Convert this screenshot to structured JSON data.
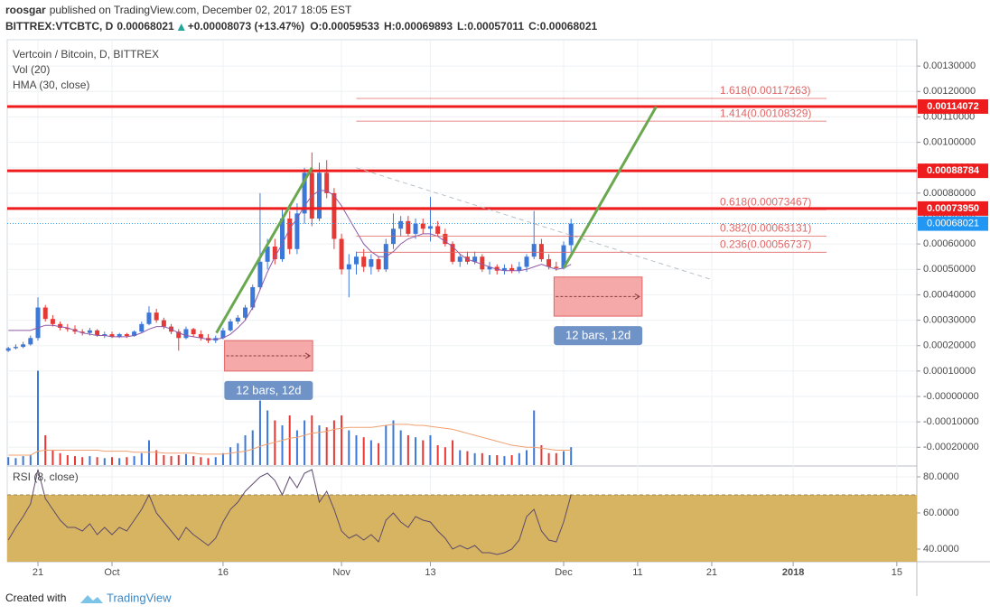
{
  "header": {
    "author": "roosgar",
    "published": "published on TradingView.com, December 02, 2017 18:05 EST",
    "symbol": "BITTREX:VTCBTC, D",
    "last": "0.00068021",
    "change": "+0.00008073 (+13.47%)",
    "quote": [
      {
        "label": "O:",
        "value": "0.00059533"
      },
      {
        "label": "H:",
        "value": "0.00069893"
      },
      {
        "label": "L:",
        "value": "0.00057011"
      },
      {
        "label": "C:",
        "value": "0.00068021"
      }
    ]
  },
  "chart_data": {
    "type": "candlestick",
    "legend": [
      "Vertcoin / Bitcoin, D, BITTREX",
      "Vol (20)",
      "HMA (30, close)"
    ],
    "up_color": "#3c78d8",
    "down_color": "#e53935",
    "hma_color": "#8e5aa8",
    "volume_ma_color": "#f0a070",
    "xlim": [
      -0.15,
      122.7
    ],
    "xticks": [
      {
        "value": 4,
        "label": "21"
      },
      {
        "value": 14,
        "label": "Oct"
      },
      {
        "value": 29,
        "label": "16"
      },
      {
        "value": 45,
        "label": "Nov"
      },
      {
        "value": 57,
        "label": "13"
      },
      {
        "value": 75,
        "label": "Dec"
      },
      {
        "value": 85,
        "label": "11"
      },
      {
        "value": 95,
        "label": "21"
      },
      {
        "value": 106,
        "label": "2018"
      },
      {
        "value": 120,
        "label": "15"
      }
    ],
    "ylim": [
      -0.00027,
      0.0014
    ],
    "yticks": [
      {
        "value": 0.0013,
        "label": "0.00130000"
      },
      {
        "value": 0.0012,
        "label": "0.00120000"
      },
      {
        "value": 0.0011,
        "label": "0.00110000"
      },
      {
        "value": 0.001,
        "label": "0.00100000"
      },
      {
        "value": 0.0009,
        "label": "0.00090000"
      },
      {
        "value": 0.0008,
        "label": "0.00080000"
      },
      {
        "value": 0.0007,
        "label": "0.00070000"
      },
      {
        "value": 0.0006,
        "label": "0.00060000"
      },
      {
        "value": 0.0005,
        "label": "0.00050000"
      },
      {
        "value": 0.0004,
        "label": "0.00040000"
      },
      {
        "value": 0.0003,
        "label": "0.00030000"
      },
      {
        "value": 0.0002,
        "label": "0.00020000"
      },
      {
        "value": 0.0001,
        "label": "0.00010000"
      },
      {
        "value": 0,
        "label": "-0.00000000"
      },
      {
        "value": -0.0001,
        "label": "-0.00010000"
      },
      {
        "value": -0.0002,
        "label": "-0.00020000"
      }
    ],
    "grid": true,
    "open": [
      0.00018,
      0.00019,
      0.000195,
      0.000205,
      0.00023,
      0.00035,
      0.000305,
      0.000285,
      0.00027,
      0.000265,
      0.000255,
      0.00025,
      0.00026,
      0.00024,
      0.000245,
      0.000235,
      0.000245,
      0.000238,
      0.000255,
      0.000285,
      0.00033,
      0.0003,
      0.000275,
      0.000255,
      0.00023,
      0.000265,
      0.000245,
      0.00023,
      0.00022,
      0.00023,
      0.00026,
      0.000295,
      0.00031,
      0.00035,
      0.00043,
      0.00053,
      0.00059,
      0.00054,
      0.0007,
      0.00058,
      0.00072,
      0.00088,
      0.0007,
      0.00088,
      0.0008,
      0.00062,
      0.0005,
      0.00052,
      0.00055,
      0.00051,
      0.00054,
      0.0005,
      0.0006,
      0.00066,
      0.00069,
      0.00064,
      0.00068,
      0.00066,
      0.00067,
      0.00064,
      0.0006,
      0.00053,
      0.00055,
      0.00053,
      0.00055,
      0.0005,
      0.00051,
      0.000495,
      0.000505,
      0.000495,
      0.00051,
      0.00055,
      0.0006,
      0.00054,
      0.00051,
      0.000505,
      0.00059533
    ],
    "high": [
      0.000195,
      0.000205,
      0.000215,
      0.00024,
      0.00039,
      0.00036,
      0.00032,
      0.000295,
      0.000285,
      0.00028,
      0.000265,
      0.00027,
      0.000265,
      0.000255,
      0.000255,
      0.00025,
      0.00025,
      0.00026,
      0.000295,
      0.000355,
      0.000345,
      0.00031,
      0.000285,
      0.000265,
      0.000275,
      0.00027,
      0.00026,
      0.000245,
      0.00024,
      0.00027,
      0.000305,
      0.00032,
      0.00036,
      0.00044,
      0.0008,
      0.00062,
      0.00062,
      0.00074,
      0.00073,
      0.00076,
      0.0009,
      0.00096,
      0.00092,
      0.00093,
      0.00082,
      0.00064,
      0.00056,
      0.00057,
      0.00058,
      0.00056,
      0.00055,
      0.00062,
      0.00072,
      0.00071,
      0.00071,
      0.0007,
      0.0007,
      0.000785,
      0.00069,
      0.00066,
      0.00061,
      0.00056,
      0.00057,
      0.00057,
      0.00056,
      0.00053,
      0.00052,
      0.00052,
      0.00052,
      0.00053,
      0.00056,
      0.00073,
      0.00062,
      0.00056,
      0.00053,
      0.00061,
      0.00069893
    ],
    "low": [
      0.000175,
      0.000185,
      0.00019,
      0.0002,
      0.00022,
      0.000295,
      0.000275,
      0.00026,
      0.000255,
      0.000245,
      0.00024,
      0.00024,
      0.000235,
      0.00023,
      0.00023,
      0.00023,
      0.00023,
      0.000235,
      0.00025,
      0.00028,
      0.00029,
      0.000265,
      0.000245,
      0.00018,
      0.000225,
      0.000235,
      0.00022,
      0.00021,
      0.00021,
      0.000225,
      0.000255,
      0.000285,
      0.0003,
      0.00034,
      0.00042,
      0.0005,
      0.00052,
      0.00053,
      0.00056,
      0.00056,
      0.00068,
      0.00067,
      0.00069,
      0.00078,
      0.00058,
      0.00048,
      0.00039,
      0.00048,
      0.00049,
      0.00048,
      0.00049,
      0.00049,
      0.00058,
      0.00063,
      0.00063,
      0.00062,
      0.00064,
      0.00061,
      0.00063,
      0.00059,
      0.00052,
      0.00051,
      0.00052,
      0.00052,
      0.00049,
      0.00048,
      0.00048,
      0.00048,
      0.000485,
      0.000485,
      0.00049,
      0.00054,
      0.00053,
      0.0005,
      0.000495,
      0.0005,
      0.00057011
    ],
    "close": [
      0.00019,
      0.000195,
      0.000205,
      0.00023,
      0.00035,
      0.000305,
      0.000285,
      0.00027,
      0.000265,
      0.000255,
      0.00025,
      0.00026,
      0.00024,
      0.000245,
      0.000235,
      0.000245,
      0.000238,
      0.000255,
      0.000285,
      0.00033,
      0.0003,
      0.000275,
      0.000255,
      0.00023,
      0.000265,
      0.000245,
      0.00023,
      0.00022,
      0.00023,
      0.00026,
      0.000295,
      0.00031,
      0.00035,
      0.00043,
      0.00053,
      0.00059,
      0.00054,
      0.0007,
      0.00058,
      0.00072,
      0.00088,
      0.0007,
      0.00088,
      0.0008,
      0.00062,
      0.0005,
      0.00052,
      0.00055,
      0.00051,
      0.00054,
      0.0005,
      0.0006,
      0.00066,
      0.00069,
      0.00064,
      0.00068,
      0.00066,
      0.00067,
      0.00064,
      0.0006,
      0.00053,
      0.00055,
      0.00053,
      0.00055,
      0.0005,
      0.00051,
      0.000495,
      0.000505,
      0.000495,
      0.00051,
      0.00055,
      0.0006,
      0.00054,
      0.00051,
      0.000505,
      0.000595,
      0.00068021
    ],
    "hma": [
      0.00026,
      0.00026,
      0.00026,
      0.00026,
      0.00027,
      0.00028,
      0.00028,
      0.000275,
      0.00027,
      0.00026,
      0.00025,
      0.000245,
      0.00024,
      0.00024,
      0.000235,
      0.000235,
      0.000235,
      0.00024,
      0.00025,
      0.000265,
      0.000275,
      0.000275,
      0.000265,
      0.00025,
      0.00024,
      0.000235,
      0.00023,
      0.000225,
      0.000225,
      0.00023,
      0.000245,
      0.00027,
      0.0003,
      0.00035,
      0.00042,
      0.00049,
      0.00055,
      0.0006,
      0.00066,
      0.0007,
      0.00075,
      0.00079,
      0.00081,
      0.00081,
      0.00079,
      0.00075,
      0.0007,
      0.00065,
      0.0006,
      0.00057,
      0.00055,
      0.00055,
      0.00057,
      0.0006,
      0.00062,
      0.00063,
      0.00064,
      0.00064,
      0.00063,
      0.00061,
      0.00059,
      0.00056,
      0.00054,
      0.00053,
      0.00052,
      0.00051,
      0.0005,
      0.000495,
      0.000495,
      0.000495,
      0.0005,
      0.00051,
      0.00052,
      0.00051,
      0.0005,
      0.000505,
      0.00052
    ],
    "volume_lim": [
      0,
      100
    ],
    "volume": [
      8,
      7,
      9,
      10,
      95,
      30,
      15,
      12,
      10,
      9,
      8,
      9,
      8,
      7,
      8,
      7,
      8,
      9,
      12,
      25,
      15,
      10,
      9,
      10,
      11,
      9,
      8,
      7,
      8,
      12,
      18,
      22,
      30,
      35,
      65,
      55,
      45,
      40,
      50,
      35,
      45,
      50,
      40,
      38,
      45,
      50,
      35,
      30,
      28,
      25,
      22,
      40,
      45,
      35,
      30,
      28,
      25,
      30,
      20,
      18,
      25,
      15,
      14,
      12,
      12,
      10,
      10,
      9,
      10,
      12,
      15,
      55,
      20,
      12,
      12,
      14,
      18
    ],
    "volume_ma": [
      10,
      10,
      10,
      10,
      14,
      15,
      15,
      15,
      15,
      15,
      15,
      15,
      15,
      14,
      14,
      14,
      14,
      13,
      13,
      13,
      13,
      12,
      12,
      12,
      12,
      12,
      11,
      11,
      11,
      11,
      12,
      13,
      14,
      16,
      19,
      21,
      23,
      25,
      27,
      28,
      30,
      32,
      33,
      34,
      36,
      37,
      38,
      38,
      38,
      38,
      39,
      40,
      41,
      41,
      41,
      40,
      40,
      39,
      38,
      37,
      36,
      34,
      32,
      30,
      28,
      26,
      24,
      22,
      20,
      19,
      18,
      18,
      17,
      16,
      15,
      15,
      15
    ],
    "levels": [
      {
        "value": 0.00114072,
        "label": "0.00114072"
      },
      {
        "value": 0.00088784,
        "label": "0.00088784"
      },
      {
        "value": 0.0007395,
        "label": "0.00073950"
      }
    ],
    "level_color": "#ee1c1c",
    "last_price": {
      "value": 0.00068021,
      "label": "0.00068021",
      "color": "#2196f3"
    },
    "fibs": {
      "from": 47,
      "to": 110.5,
      "color": "#e06666",
      "lines": [
        {
          "value": 0.00117263,
          "label": "1.618(0.00117263)"
        },
        {
          "value": 0.00108329,
          "label": "1.414(0.00108329)"
        },
        {
          "value": 0.00073467,
          "label": "0.618(0.00073467)"
        },
        {
          "value": 0.00063131,
          "label": "0.382(0.00063131)"
        },
        {
          "value": 0.00056737,
          "label": "0.236(0.00056737)"
        }
      ]
    },
    "trend_lines": [
      {
        "x": [
          28.1,
          41
        ],
        "y": [
          0.00025,
          0.0009
        ],
        "color": "#6aa84f"
      },
      {
        "x": [
          75,
          87.5
        ],
        "y": [
          0.000505,
          0.00114
        ],
        "color": "#6aa84f"
      },
      {
        "x": [
          47,
          95.2
        ],
        "y": [
          0.0009,
          0.000458
        ],
        "color": "#b8c0c8",
        "dashed": true
      }
    ],
    "date_ranges": [
      {
        "from": 29.2,
        "to": 41.1,
        "low": 0.0001,
        "high": 0.00022,
        "label": "12 bars, 12d"
      },
      {
        "from": 73.7,
        "to": 85.6,
        "low": 0.000316,
        "high": 0.00047,
        "label": "12 bars, 12d"
      }
    ],
    "rsi": {
      "label": "RSI (8, close)",
      "color": "#5d4a6b",
      "band_color": "#d4b05a",
      "band": [
        30,
        70
      ],
      "ylim": [
        33,
        85.5
      ],
      "yticks": [
        {
          "value": 80,
          "label": "80.0000"
        },
        {
          "value": 60,
          "label": "60.0000"
        },
        {
          "value": 40,
          "label": "40.0000"
        }
      ],
      "values": [
        45,
        52,
        58,
        65,
        84,
        68,
        62,
        56,
        52,
        52,
        50,
        54,
        48,
        52,
        48,
        52,
        50,
        56,
        62,
        70,
        60,
        55,
        50,
        45,
        52,
        48,
        45,
        42,
        46,
        55,
        62,
        66,
        72,
        76,
        80,
        82,
        78,
        70,
        80,
        74,
        82,
        84,
        66,
        72,
        62,
        50,
        46,
        48,
        45,
        48,
        44,
        56,
        60,
        55,
        52,
        58,
        56,
        55,
        50,
        46,
        40,
        42,
        40,
        42,
        38,
        38,
        37,
        38,
        40,
        45,
        58,
        62,
        50,
        45,
        44,
        55,
        70
      ]
    }
  },
  "footer": {
    "text": "Created with",
    "brand": "TradingView"
  }
}
